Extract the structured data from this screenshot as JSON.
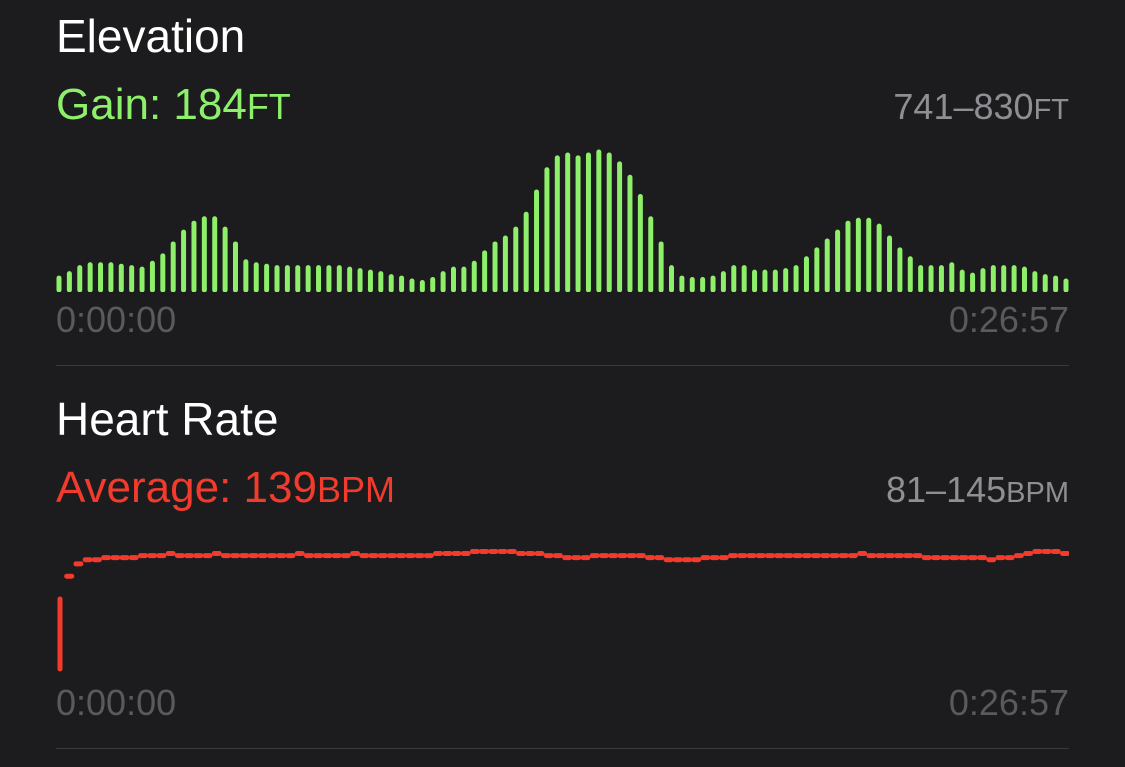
{
  "colors": {
    "background": "#1c1c1e",
    "elevation": "#8ef06a",
    "heart_rate": "#f23b2c",
    "secondary_text": "#8e8e93",
    "muted_text": "#5a5a5e",
    "divider": "#3a3a3c"
  },
  "elevation": {
    "title": "Elevation",
    "stat_label": "Gain: 184",
    "stat_unit": "FT",
    "range_value": "741–830",
    "range_unit": "FT",
    "start_time": "0:00:00",
    "end_time": "0:26:57"
  },
  "heart_rate": {
    "title": "Heart Rate",
    "stat_label": "Average: 139",
    "stat_unit": "BPM",
    "range_value": "81–145",
    "range_unit": "BPM",
    "start_time": "0:00:00",
    "end_time": "0:26:57"
  },
  "chart_data": [
    {
      "type": "bar",
      "series_key": "elevation",
      "x_range": [
        "0:00:00",
        "0:26:57"
      ],
      "ylim": [
        741,
        830
      ],
      "values": [
        745,
        748,
        752,
        754,
        754,
        754,
        753,
        752,
        751,
        755,
        760,
        768,
        776,
        782,
        785,
        785,
        778,
        768,
        756,
        754,
        753,
        752,
        752,
        752,
        752,
        752,
        752,
        752,
        751,
        750,
        749,
        748,
        746,
        745,
        743,
        742,
        744,
        748,
        751,
        751,
        755,
        762,
        768,
        772,
        778,
        788,
        803,
        818,
        826,
        828,
        826,
        828,
        830,
        828,
        822,
        813,
        800,
        785,
        768,
        752,
        745,
        744,
        744,
        745,
        748,
        752,
        752,
        749,
        749,
        749,
        750,
        752,
        758,
        764,
        770,
        776,
        782,
        784,
        784,
        780,
        772,
        764,
        758,
        752,
        752,
        752,
        754,
        749,
        747,
        750,
        752,
        752,
        752,
        751,
        748,
        746,
        745,
        743
      ]
    },
    {
      "type": "scatter",
      "series_key": "heart_rate",
      "x_range": [
        "0:00:00",
        "0:26:57"
      ],
      "ylim": [
        81,
        145
      ],
      "values": [
        81,
        126,
        132,
        134,
        134,
        135,
        135,
        135,
        135,
        136,
        136,
        136,
        137,
        136,
        136,
        136,
        136,
        137,
        136,
        136,
        136,
        136,
        136,
        136,
        136,
        136,
        137,
        136,
        136,
        136,
        136,
        136,
        137,
        136,
        136,
        136,
        136,
        136,
        136,
        136,
        136,
        137,
        137,
        137,
        137,
        138,
        138,
        138,
        138,
        138,
        137,
        137,
        137,
        136,
        136,
        135,
        135,
        135,
        136,
        136,
        136,
        136,
        136,
        136,
        135,
        135,
        134,
        134,
        134,
        134,
        135,
        135,
        135,
        136,
        136,
        136,
        136,
        136,
        136,
        136,
        136,
        136,
        136,
        136,
        136,
        136,
        136,
        137,
        136,
        136,
        136,
        136,
        136,
        136,
        135,
        135,
        135,
        135,
        135,
        135,
        135,
        134,
        135,
        135,
        136,
        137,
        138,
        138,
        138,
        137
      ]
    }
  ]
}
